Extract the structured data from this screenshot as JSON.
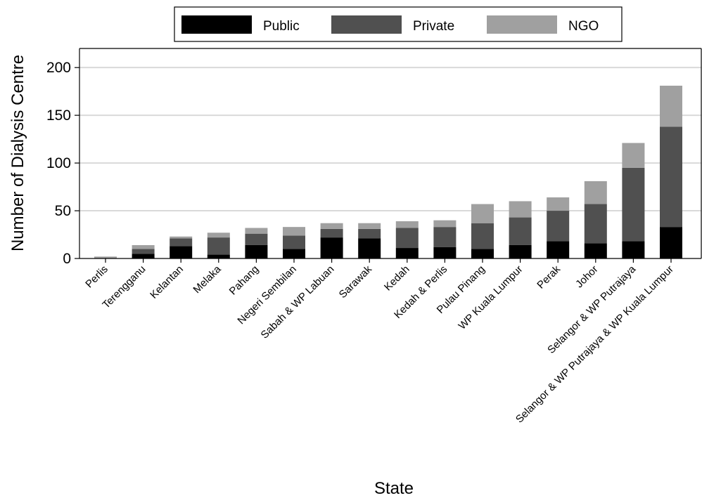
{
  "chart_data": {
    "type": "bar",
    "stacked": true,
    "title": "",
    "xlabel": "State",
    "ylabel": "Number of Dialysis Centre",
    "ylim": [
      0,
      220
    ],
    "yticks": [
      0,
      50,
      100,
      150,
      200
    ],
    "grid": "horizontal",
    "legend_position": "top",
    "categories": [
      "Perlis",
      "Terengganu",
      "Kelantan",
      "Melaka",
      "Pahang",
      "Negeri Sembilan",
      "Sabah & WP Labuan",
      "Sarawak",
      "Kedah",
      "Kedah & Perlis",
      "Pulau Pinang",
      "WP Kuala Lumpur",
      "Perak",
      "Johor",
      "Selangor & WP Putrajaya",
      "Selangor & WP Putrajaya & WP Kuala Lumpur"
    ],
    "series": [
      {
        "name": "Public",
        "color": "#000000",
        "values": [
          0,
          5,
          13,
          4,
          14,
          10,
          22,
          21,
          11,
          12,
          10,
          14,
          18,
          16,
          18,
          33
        ]
      },
      {
        "name": "Private",
        "color": "#505050",
        "values": [
          0,
          5,
          8,
          18,
          12,
          14,
          9,
          10,
          21,
          21,
          27,
          29,
          32,
          41,
          77,
          105
        ]
      },
      {
        "name": "NGO",
        "color": "#a0a0a0",
        "values": [
          2,
          4,
          2,
          5,
          6,
          9,
          6,
          6,
          7,
          7,
          20,
          17,
          14,
          24,
          26,
          43
        ]
      }
    ]
  }
}
